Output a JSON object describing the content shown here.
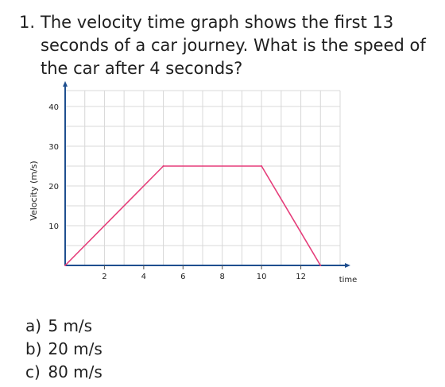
{
  "question": {
    "number": "1.",
    "text": "The velocity time graph shows the first 13 seconds of a car journey. What is the speed of the car after 4 seconds?"
  },
  "options": [
    {
      "letter": "a)",
      "text": "5 m/s"
    },
    {
      "letter": "b)",
      "text": "20 m/s"
    },
    {
      "letter": "c)",
      "text": "80 m/s"
    }
  ],
  "chart_data": {
    "type": "line",
    "title": "",
    "xlabel": "time",
    "ylabel": "Velocity (m/s)",
    "x": [
      0,
      5,
      10,
      13
    ],
    "series": [
      {
        "values": [
          0,
          25,
          25,
          0
        ]
      }
    ],
    "xlim": [
      0,
      14
    ],
    "ylim": [
      0,
      44
    ],
    "xticks": [
      2,
      4,
      6,
      8,
      10,
      12
    ],
    "yticks": [
      10,
      20,
      30,
      40
    ],
    "grid": true,
    "colors": {
      "line": "#e53d7a",
      "axis": "#1f4f8f",
      "grid": "#d8d8d8"
    }
  }
}
